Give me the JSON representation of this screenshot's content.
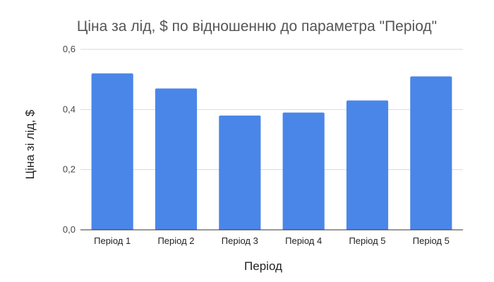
{
  "chart_data": {
    "type": "bar",
    "title": "Ціна за лід, $ по відношенню до параметра \"Період\"",
    "xlabel": "Період",
    "ylabel": "Ціна зі лід, $",
    "categories": [
      "Період 1",
      "Період 2",
      "Період 3",
      "Період 4",
      "Період 5",
      "Період 5"
    ],
    "series": [
      {
        "values": [
          0.52,
          0.47,
          0.38,
          0.39,
          0.43,
          0.51
        ]
      }
    ],
    "ylim": [
      0,
      0.6
    ],
    "yticks": [
      0,
      0.2,
      0.4,
      0.6
    ],
    "ytick_labels": [
      "0,0",
      "0,2",
      "0,4",
      "0,6"
    ],
    "grid": true,
    "legend": "none",
    "colors": {
      "bar": "#4a86e8"
    }
  }
}
